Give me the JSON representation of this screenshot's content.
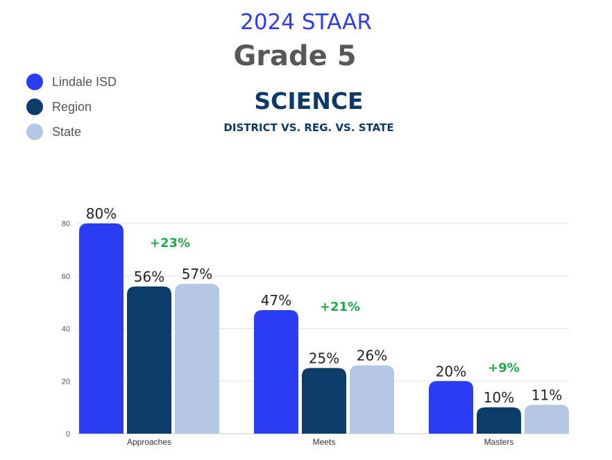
{
  "header": {
    "year_title": "2024 STAAR",
    "grade": "Grade 5",
    "subject": "SCIENCE",
    "comparison": "DISTRICT VS. REG. VS. STATE"
  },
  "legend": [
    {
      "label": "Lindale ISD",
      "color": "#2a3df5"
    },
    {
      "label": "Region",
      "color": "#0b3c6a"
    },
    {
      "label": "State",
      "color": "#b4c8e6"
    }
  ],
  "chart_data": {
    "type": "bar",
    "title": "2024 STAAR Grade 5 SCIENCE",
    "categories": [
      "Approaches",
      "Meets",
      "Masters"
    ],
    "series": [
      {
        "name": "Lindale ISD",
        "values": [
          80,
          47,
          20
        ],
        "labels": [
          "80%",
          "47%",
          "20%"
        ],
        "color": "#2a3df5"
      },
      {
        "name": "Region",
        "values": [
          56,
          25,
          10
        ],
        "labels": [
          "56%",
          "25%",
          "10%"
        ],
        "color": "#0b3c6a"
      },
      {
        "name": "State",
        "values": [
          57,
          26,
          11
        ],
        "labels": [
          "57%",
          "26%",
          "11%"
        ],
        "color": "#b4c8e6"
      }
    ],
    "differences": [
      "+23%",
      "+21%",
      "+9%"
    ],
    "yticks": [
      "0",
      "20",
      "40",
      "60",
      "80"
    ],
    "ylim": [
      0,
      80
    ],
    "xlabel": "",
    "ylabel": "",
    "grid": true
  }
}
